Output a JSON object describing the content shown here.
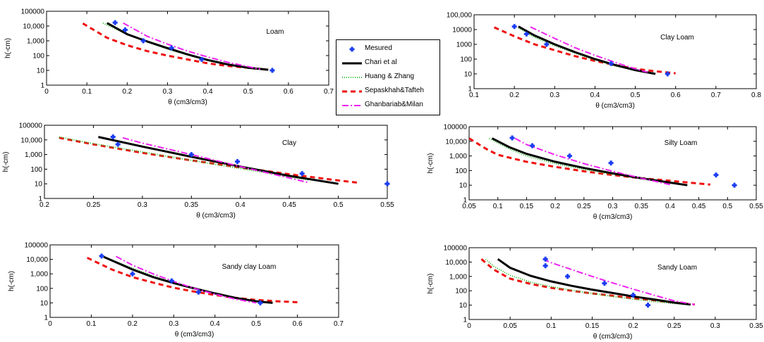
{
  "legend": [
    {
      "key": "measured",
      "label": "Mesured"
    },
    {
      "key": "chari",
      "label": "Chari et al"
    },
    {
      "key": "huang",
      "label": "Huang & Zhang"
    },
    {
      "key": "sepas",
      "label": "Sepaskhah&Tafteh"
    },
    {
      "key": "ghan",
      "label": "Ghanbariab&Milan"
    }
  ],
  "styles": {
    "measured": {
      "color": "#1a3cf0",
      "marker": "plus-bold"
    },
    "chari": {
      "color": "#000000",
      "dash": "none",
      "width": 3
    },
    "huang": {
      "color": "#22bb22",
      "dash": "1,2",
      "width": 2
    },
    "sepas": {
      "color": "#ee1111",
      "dash": "7,5",
      "width": 3
    },
    "ghan": {
      "color": "#ee22ee",
      "dash": "9,3,2,3",
      "width": 2
    }
  },
  "chart_data": [
    {
      "type": "line",
      "title": "Loam",
      "xlabel": "θ (cm3/cm3)",
      "ylabel": "h(-cm)",
      "xlim": [
        0,
        0.7
      ],
      "ylim": [
        1,
        100000
      ],
      "yscale": "log",
      "xticks": [
        "0",
        "0.1",
        "0.2",
        "0.3",
        "0.4",
        "0.5",
        "0.6",
        "0.7"
      ],
      "yticks": [
        "1",
        "10",
        "100",
        "1,000",
        "10,000",
        "100000"
      ],
      "measured": {
        "x": [
          0.17,
          0.195,
          0.24,
          0.31,
          0.385,
          0.56
        ],
        "y": [
          17000,
          5500,
          1000,
          330,
          55,
          10
        ]
      },
      "series": {
        "chari": {
          "x": [
            0.15,
            0.2,
            0.25,
            0.3,
            0.35,
            0.4,
            0.45,
            0.5,
            0.55
          ],
          "y": [
            16000,
            2800,
            900,
            320,
            120,
            50,
            25,
            15,
            11
          ]
        },
        "huang": {
          "x": [
            0.14,
            0.2,
            0.25,
            0.3,
            0.35,
            0.4,
            0.45,
            0.5,
            0.55
          ],
          "y": [
            16000,
            2700,
            800,
            280,
            110,
            48,
            25,
            14,
            11
          ]
        },
        "sepas": {
          "x": [
            0.09,
            0.15,
            0.2,
            0.25,
            0.3,
            0.35,
            0.4,
            0.45,
            0.5,
            0.55
          ],
          "y": [
            15000,
            1600,
            500,
            200,
            100,
            55,
            30,
            20,
            15,
            11
          ]
        },
        "ghan": {
          "x": [
            0.19,
            0.25,
            0.3,
            0.35,
            0.4,
            0.45,
            0.5,
            0.53
          ],
          "y": [
            16000,
            2000,
            600,
            200,
            80,
            35,
            18,
            12
          ]
        }
      }
    },
    {
      "type": "line",
      "title": "Clay Loam",
      "xlabel": "θ (cm3/cm3)",
      "ylabel": "h(-cm)",
      "xlim": [
        0.1,
        0.8
      ],
      "ylim": [
        1,
        100000
      ],
      "yscale": "log",
      "xticks": [
        "0.1",
        "0.2",
        "0.3",
        "0.4",
        "0.5",
        "0.6",
        "0.7",
        "0.8"
      ],
      "yticks": [
        "1",
        "10",
        "100",
        "1000",
        "10000",
        "100,000"
      ],
      "measured": {
        "x": [
          0.2,
          0.23,
          0.28,
          0.44,
          0.58
        ],
        "y": [
          16000,
          5000,
          1000,
          50,
          10
        ]
      },
      "series": {
        "chari": {
          "x": [
            0.21,
            0.25,
            0.3,
            0.35,
            0.4,
            0.45,
            0.5,
            0.55
          ],
          "y": [
            16000,
            4000,
            1000,
            300,
            100,
            40,
            18,
            10
          ]
        },
        "huang": {
          "x": [
            0.21,
            0.25,
            0.3,
            0.35,
            0.4,
            0.45,
            0.5,
            0.55
          ],
          "y": [
            13000,
            3000,
            800,
            250,
            90,
            35,
            17,
            10
          ]
        },
        "sepas": {
          "x": [
            0.15,
            0.2,
            0.25,
            0.3,
            0.35,
            0.4,
            0.45,
            0.5,
            0.55,
            0.6
          ],
          "y": [
            14000,
            3500,
            1000,
            400,
            160,
            75,
            40,
            22,
            15,
            11
          ]
        },
        "ghan": {
          "x": [
            0.24,
            0.3,
            0.35,
            0.4,
            0.45,
            0.5,
            0.53
          ],
          "y": [
            15000,
            2500,
            600,
            180,
            60,
            22,
            13
          ]
        }
      }
    },
    {
      "type": "line",
      "title": "Clay",
      "xlabel": "θ (cm3/cm3)",
      "ylabel": "h(-cm)",
      "xlim": [
        0.2,
        0.55
      ],
      "ylim": [
        1,
        100000
      ],
      "yscale": "log",
      "xticks": [
        "0.2",
        "0.25",
        "0.3",
        "0.35",
        "0.4",
        "0.45",
        "0.5",
        "0.55"
      ],
      "yticks": [
        "1",
        "10",
        "100",
        "1,000",
        "10,000",
        "100000"
      ],
      "measured": {
        "x": [
          0.27,
          0.275,
          0.35,
          0.397,
          0.463,
          0.55
        ],
        "y": [
          16000,
          5000,
          1000,
          330,
          50,
          10
        ]
      },
      "series": {
        "chari": {
          "x": [
            0.255,
            0.3,
            0.35,
            0.4,
            0.45,
            0.5
          ],
          "y": [
            16000,
            3500,
            700,
            150,
            35,
            10
          ]
        },
        "huang": {
          "x": [
            0.215,
            0.25,
            0.3,
            0.35,
            0.4,
            0.45,
            0.47
          ],
          "y": [
            16000,
            5500,
            1500,
            400,
            110,
            30,
            18
          ]
        },
        "sepas": {
          "x": [
            0.215,
            0.25,
            0.3,
            0.35,
            0.4,
            0.45,
            0.5,
            0.52
          ],
          "y": [
            14000,
            5000,
            1300,
            400,
            130,
            45,
            17,
            12
          ]
        },
        "ghan": {
          "x": [
            0.28,
            0.3,
            0.35,
            0.4,
            0.45,
            0.47
          ],
          "y": [
            14000,
            6000,
            1000,
            150,
            25,
            12
          ]
        }
      }
    },
    {
      "type": "line",
      "title": "Silty Loam",
      "xlabel": "θ (cm3/cm3)",
      "ylabel": "h(-cm)",
      "xlim": [
        0.05,
        0.55
      ],
      "ylim": [
        1,
        100000
      ],
      "yscale": "log",
      "xticks": [
        "0.05",
        "0.1",
        "0.15",
        "0.2",
        "0.25",
        "0.3",
        "0.35",
        "0.4",
        "0.45",
        "0.5",
        "0.55"
      ],
      "yticks": [
        "1",
        "10",
        "100",
        "1,000",
        "10,000",
        "100000"
      ],
      "measured": {
        "x": [
          0.125,
          0.16,
          0.225,
          0.297,
          0.48,
          0.512
        ],
        "y": [
          17000,
          5000,
          1000,
          330,
          50,
          10
        ]
      },
      "series": {
        "chari": {
          "x": [
            0.09,
            0.12,
            0.15,
            0.2,
            0.25,
            0.3,
            0.35,
            0.4,
            0.43
          ],
          "y": [
            16000,
            4000,
            1400,
            400,
            150,
            65,
            30,
            15,
            10
          ]
        },
        "huang": {
          "x": [
            0.085,
            0.12,
            0.15,
            0.2,
            0.25,
            0.3,
            0.35,
            0.4,
            0.42
          ],
          "y": [
            16000,
            3000,
            1000,
            300,
            120,
            55,
            28,
            15,
            11
          ]
        },
        "sepas": {
          "x": [
            0.05,
            0.08,
            0.1,
            0.15,
            0.2,
            0.25,
            0.3,
            0.35,
            0.4,
            0.45,
            0.47
          ],
          "y": [
            16000,
            3000,
            1200,
            400,
            180,
            90,
            50,
            30,
            20,
            13,
            11
          ]
        },
        "ghan": {
          "x": [
            0.13,
            0.15,
            0.2,
            0.25,
            0.3,
            0.35,
            0.4
          ],
          "y": [
            16000,
            6000,
            1200,
            300,
            90,
            30,
            11
          ]
        }
      }
    },
    {
      "type": "line",
      "title": "Sandy clay Loam",
      "xlabel": "θ (cm3/cm3)",
      "ylabel": "h(-cm)",
      "xlim": [
        0,
        0.7
      ],
      "ylim": [
        1,
        100000
      ],
      "yscale": "log",
      "xticks": [
        "0",
        "0.1",
        "0.2",
        "0.3",
        "0.4",
        "0.5",
        "0.6",
        "0.7"
      ],
      "yticks": [
        "1",
        "10",
        "100",
        "1,000",
        "10,000",
        "100000"
      ],
      "measured": {
        "x": [
          0.125,
          0.2,
          0.295,
          0.36,
          0.51
        ],
        "y": [
          17000,
          1000,
          330,
          55,
          10
        ]
      },
      "series": {
        "chari": {
          "x": [
            0.13,
            0.2,
            0.25,
            0.3,
            0.35,
            0.4,
            0.45,
            0.5,
            0.54
          ],
          "y": [
            15000,
            2000,
            600,
            230,
            100,
            45,
            22,
            13,
            10
          ]
        },
        "huang": {
          "x": [
            0.125,
            0.2,
            0.25,
            0.3,
            0.35,
            0.4,
            0.45,
            0.5
          ],
          "y": [
            16000,
            2500,
            700,
            250,
            100,
            45,
            22,
            12
          ]
        },
        "sepas": {
          "x": [
            0.09,
            0.15,
            0.2,
            0.25,
            0.3,
            0.35,
            0.4,
            0.45,
            0.5,
            0.55,
            0.6
          ],
          "y": [
            13000,
            2000,
            600,
            250,
            110,
            60,
            35,
            22,
            16,
            13,
            11
          ]
        },
        "ghan": {
          "x": [
            0.16,
            0.2,
            0.25,
            0.3,
            0.35,
            0.4,
            0.45,
            0.5
          ],
          "y": [
            16000,
            4000,
            1000,
            300,
            100,
            40,
            18,
            10
          ]
        }
      }
    },
    {
      "type": "line",
      "title": "Sandy  Loam",
      "xlabel": "θ (cm3/cm3)",
      "ylabel": "h(-cm)",
      "xlim": [
        0,
        0.35
      ],
      "ylim": [
        1,
        100000
      ],
      "yscale": "log",
      "xticks": [
        "0",
        "0.05",
        "0.1",
        "0.15",
        "0.2",
        "0.25",
        "0.3",
        "0.35"
      ],
      "yticks": [
        "1",
        "10",
        "100",
        "1,000",
        "10,000",
        "100000"
      ],
      "measured": {
        "x": [
          0.093,
          0.093,
          0.12,
          0.165,
          0.2,
          0.218
        ],
        "y": [
          16000,
          5500,
          1000,
          330,
          50,
          10
        ]
      },
      "series": {
        "chari": {
          "x": [
            0.035,
            0.05,
            0.075,
            0.1,
            0.125,
            0.15,
            0.175,
            0.2,
            0.225,
            0.25,
            0.27
          ],
          "y": [
            16000,
            4000,
            1100,
            450,
            220,
            120,
            70,
            40,
            25,
            15,
            11
          ]
        },
        "huang": {
          "x": [
            0.02,
            0.03,
            0.05,
            0.075,
            0.1,
            0.125,
            0.15,
            0.175,
            0.2,
            0.225,
            0.25,
            0.27
          ],
          "y": [
            16000,
            5000,
            1200,
            400,
            190,
            110,
            65,
            40,
            26,
            18,
            13,
            11
          ]
        },
        "sepas": {
          "x": [
            0.015,
            0.03,
            0.05,
            0.075,
            0.1,
            0.125,
            0.15,
            0.175,
            0.2,
            0.225,
            0.25,
            0.275
          ],
          "y": [
            16000,
            3000,
            700,
            300,
            160,
            100,
            65,
            45,
            30,
            22,
            15,
            11
          ]
        },
        "ghan": {
          "x": [
            0.09,
            0.1,
            0.125,
            0.15,
            0.175,
            0.2,
            0.225,
            0.25,
            0.275
          ],
          "y": [
            16000,
            9000,
            3000,
            1000,
            350,
            130,
            50,
            20,
            11
          ]
        }
      }
    }
  ]
}
